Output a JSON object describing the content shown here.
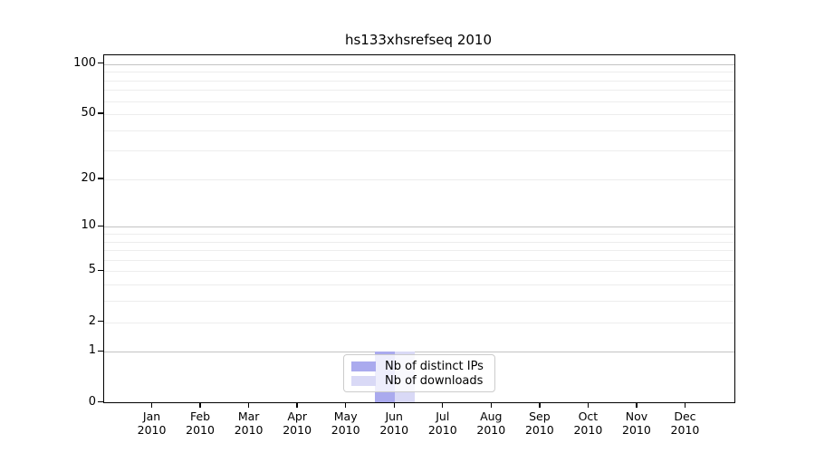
{
  "chart_data": {
    "type": "bar",
    "title": "hs133xhsrefseq 2010",
    "year": "2010",
    "months": [
      "Jan",
      "Feb",
      "Mar",
      "Apr",
      "May",
      "Jun",
      "Jul",
      "Aug",
      "Sep",
      "Oct",
      "Nov",
      "Dec"
    ],
    "categories": [
      "Jan 2010",
      "Feb 2010",
      "Mar 2010",
      "Apr 2010",
      "May 2010",
      "Jun 2010",
      "Jul 2010",
      "Aug 2010",
      "Sep 2010",
      "Oct 2010",
      "Nov 2010",
      "Dec 2010"
    ],
    "series": [
      {
        "name": "Nb of distinct IPs",
        "color": "#aaaaee",
        "values": [
          0,
          0,
          0,
          0,
          0,
          1,
          0,
          0,
          0,
          0,
          0,
          0
        ]
      },
      {
        "name": "Nb of downloads",
        "color": "#d9d9f6",
        "values": [
          0,
          0,
          0,
          0,
          0,
          1,
          0,
          0,
          0,
          0,
          0,
          0
        ]
      }
    ],
    "xlabel": "",
    "ylabel": "",
    "yscale": "log1p",
    "ylim": [
      0,
      113
    ],
    "yticks": [
      0,
      1,
      2,
      5,
      10,
      20,
      50,
      100
    ],
    "major_gridlines": [
      1,
      10,
      100
    ],
    "minor_gridlines": [
      2,
      3,
      4,
      5,
      6,
      7,
      8,
      9,
      20,
      30,
      40,
      50,
      60,
      70,
      80,
      90
    ],
    "grid": true,
    "legend_position": "lower center"
  },
  "colors": {
    "background": "#ffffff",
    "axis": "#000000",
    "major_grid": "#c3c3c3",
    "minor_grid": "#ededed",
    "legend_border": "#cccccc",
    "bar_distinct_ips": "#aaaaee",
    "bar_downloads": "#d9d9f6"
  }
}
